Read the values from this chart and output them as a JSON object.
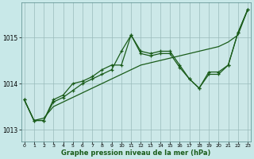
{
  "xlabel": "Graphe pression niveau de la mer (hPa)",
  "hours": [
    0,
    1,
    2,
    3,
    4,
    5,
    6,
    7,
    8,
    9,
    10,
    11,
    12,
    13,
    14,
    15,
    16,
    17,
    18,
    19,
    20,
    21,
    22,
    23
  ],
  "line_volatile1": [
    1013.65,
    1013.2,
    1013.2,
    1013.6,
    1013.7,
    1013.85,
    1014.0,
    1014.1,
    1014.2,
    1014.3,
    1014.7,
    1015.05,
    1014.65,
    1014.6,
    1014.65,
    1014.65,
    1014.35,
    1014.1,
    1013.9,
    1014.2,
    1014.2,
    1014.4,
    1015.1,
    1015.6
  ],
  "line_volatile2": [
    1013.65,
    1013.2,
    1013.2,
    1013.65,
    1013.75,
    1014.0,
    1014.05,
    1014.15,
    1014.3,
    1014.4,
    1014.4,
    1015.05,
    1014.7,
    1014.65,
    1014.7,
    1014.7,
    1014.4,
    1014.1,
    1013.9,
    1014.25,
    1014.25,
    1014.4,
    1015.1,
    1015.6
  ],
  "line_trend": [
    1013.65,
    1013.2,
    1013.25,
    1013.5,
    1013.6,
    1013.7,
    1013.8,
    1013.9,
    1014.0,
    1014.1,
    1014.2,
    1014.3,
    1014.4,
    1014.45,
    1014.5,
    1014.55,
    1014.6,
    1014.65,
    1014.7,
    1014.75,
    1014.8,
    1014.9,
    1015.05,
    1015.6
  ],
  "bg_color": "#c8e8e8",
  "plot_bg_color": "#cce8e8",
  "line_color": "#1a5c1a",
  "grid_color": "#99bbbb",
  "ylim": [
    1012.75,
    1015.75
  ],
  "yticks": [
    1013,
    1014,
    1015
  ],
  "xticks": [
    0,
    1,
    2,
    3,
    4,
    5,
    6,
    7,
    8,
    9,
    10,
    11,
    12,
    13,
    14,
    15,
    16,
    17,
    18,
    19,
    20,
    21,
    22,
    23
  ],
  "marker": "+"
}
